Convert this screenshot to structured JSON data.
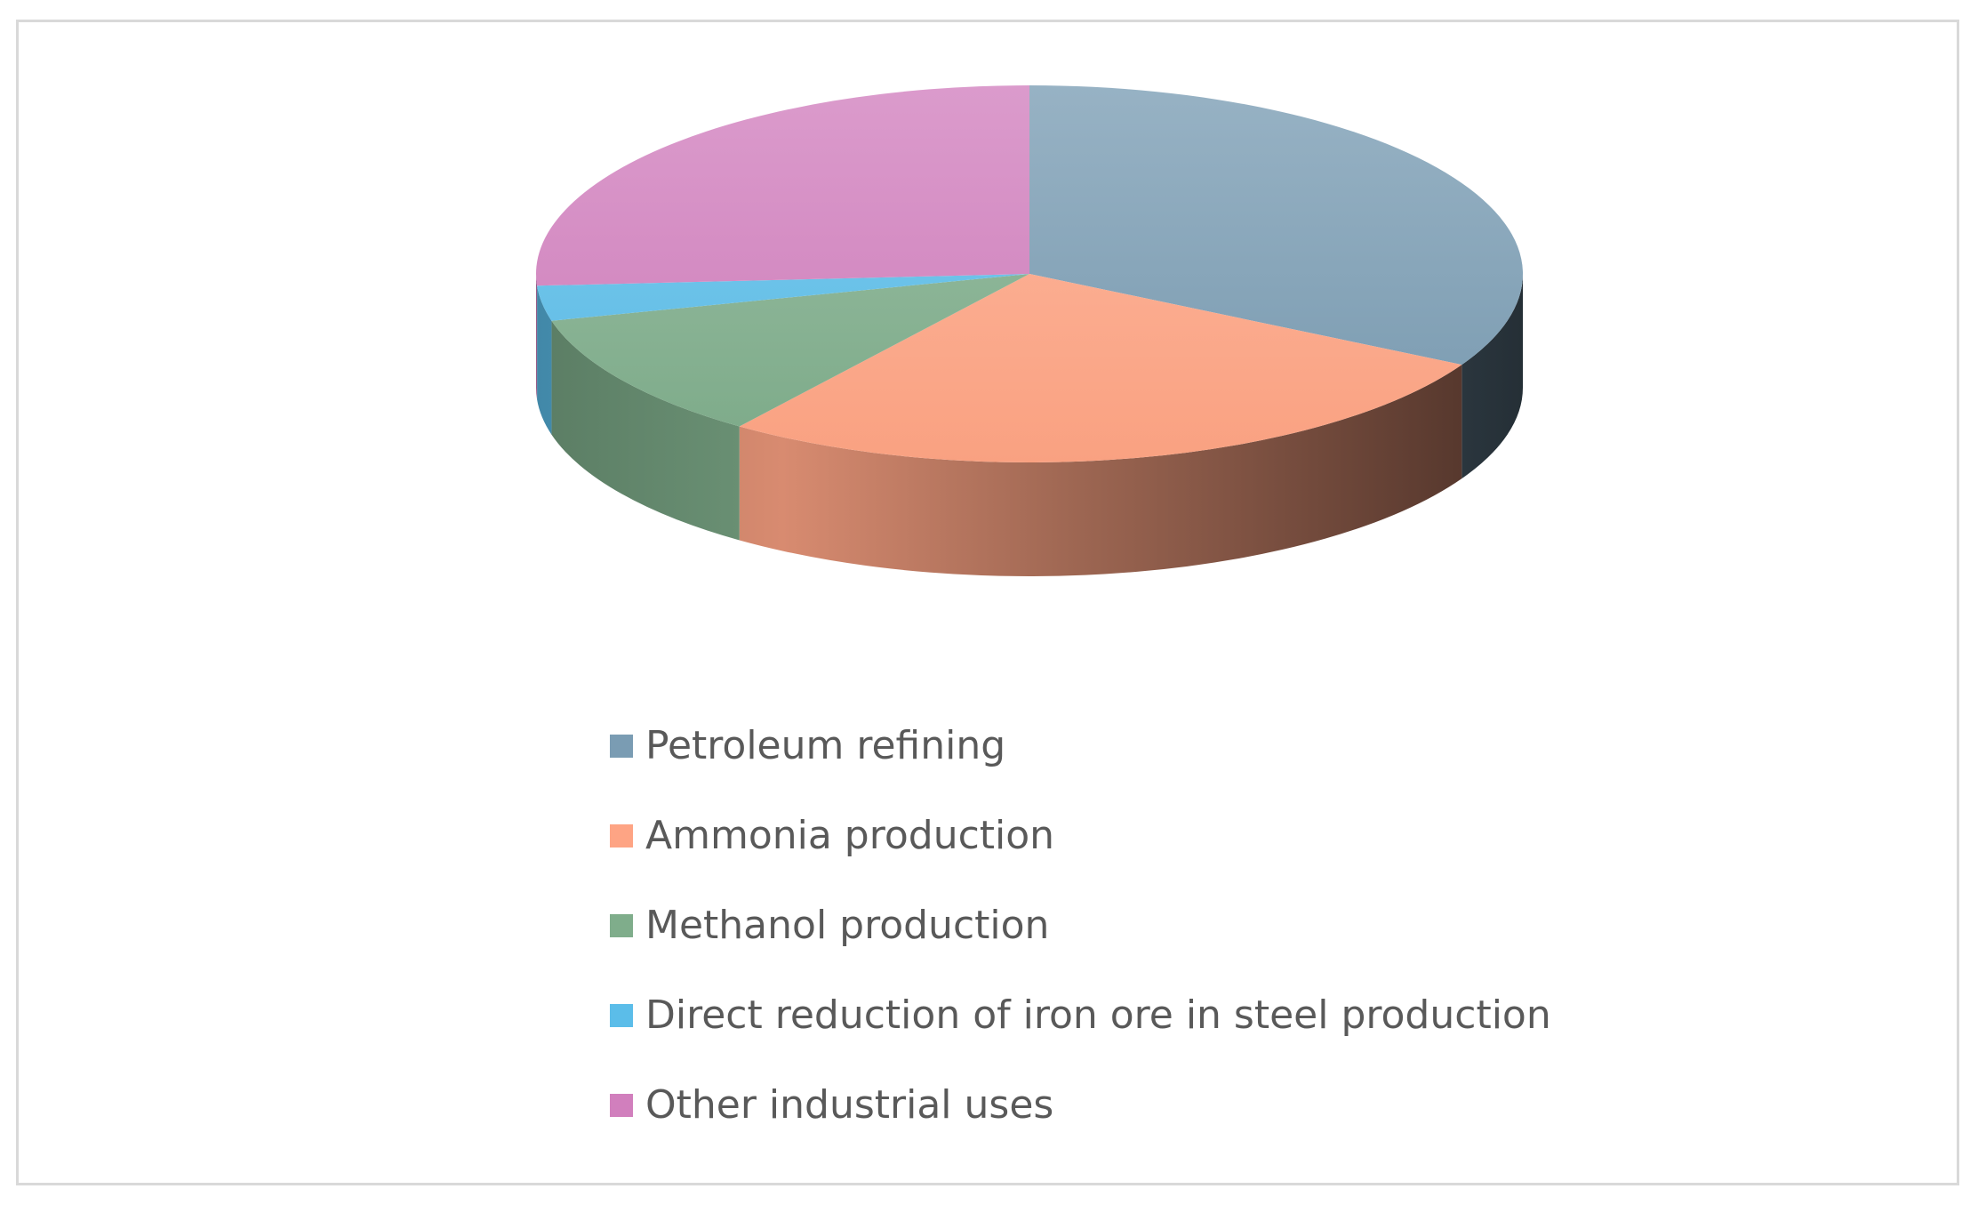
{
  "chart_data": {
    "type": "pie",
    "style": "3d",
    "title": "",
    "series": [
      {
        "name": "Petroleum refining",
        "value": 33.0,
        "color": "#7a9cb3"
      },
      {
        "name": "Ammonia production",
        "value": 27.0,
        "color": "#fea484"
      },
      {
        "name": "Methanol production",
        "value": 11.0,
        "color": "#7fad8b"
      },
      {
        "name": "Direct reduction of iron ore in steel production",
        "value": 3.0,
        "color": "#5bbde9"
      },
      {
        "name": "Other industrial uses",
        "value": 26.0,
        "color": "#d17fbd"
      }
    ],
    "legend_position": "bottom"
  }
}
